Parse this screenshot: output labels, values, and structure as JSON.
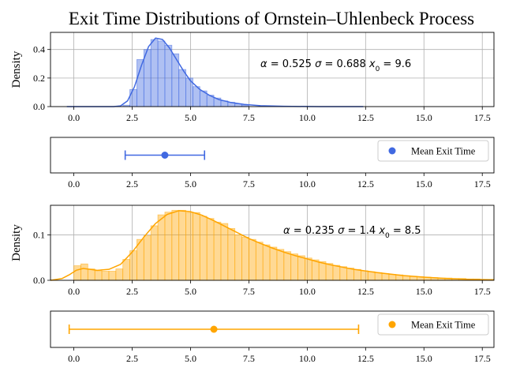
{
  "title": "Exit Time Distributions of Ornstein–Uhlenbeck Process",
  "chart_data": [
    {
      "type": "bar",
      "role": "histogram-with-kde",
      "color": "#4169e1",
      "ylabel": "Density",
      "xlim": [
        -1.0,
        18.0
      ],
      "ylim": [
        0,
        0.52
      ],
      "xticks": [
        "0.0",
        "2.5",
        "5.0",
        "7.5",
        "10.0",
        "12.5",
        "15.0",
        "17.5"
      ],
      "yticks": [
        "0.0",
        "0.2",
        "0.4"
      ],
      "ytick_values": [
        0.0,
        0.2,
        0.4
      ],
      "grid": true,
      "annotation": {
        "alpha": "0.525",
        "sigma": "0.688",
        "x0": "9.6"
      },
      "bin_width": 0.3,
      "bins": [
        {
          "x": 2.1,
          "density": 0.01
        },
        {
          "x": 2.4,
          "density": 0.12
        },
        {
          "x": 2.7,
          "density": 0.33
        },
        {
          "x": 3.0,
          "density": 0.4
        },
        {
          "x": 3.3,
          "density": 0.47
        },
        {
          "x": 3.6,
          "density": 0.46
        },
        {
          "x": 3.9,
          "density": 0.43
        },
        {
          "x": 4.2,
          "density": 0.37
        },
        {
          "x": 4.5,
          "density": 0.26
        },
        {
          "x": 4.8,
          "density": 0.2
        },
        {
          "x": 5.1,
          "density": 0.14
        },
        {
          "x": 5.4,
          "density": 0.11
        },
        {
          "x": 5.7,
          "density": 0.08
        },
        {
          "x": 6.0,
          "density": 0.06
        },
        {
          "x": 6.3,
          "density": 0.04
        },
        {
          "x": 6.6,
          "density": 0.03
        },
        {
          "x": 6.9,
          "density": 0.02
        },
        {
          "x": 7.2,
          "density": 0.01
        }
      ],
      "kde": [
        [
          -0.3,
          0.0
        ],
        [
          1.7,
          0.0
        ],
        [
          2.0,
          0.005
        ],
        [
          2.3,
          0.04
        ],
        [
          2.6,
          0.14
        ],
        [
          2.9,
          0.29
        ],
        [
          3.2,
          0.42
        ],
        [
          3.5,
          0.48
        ],
        [
          3.8,
          0.47
        ],
        [
          4.1,
          0.41
        ],
        [
          4.4,
          0.33
        ],
        [
          4.7,
          0.25
        ],
        [
          5.0,
          0.18
        ],
        [
          5.4,
          0.12
        ],
        [
          5.8,
          0.08
        ],
        [
          6.2,
          0.05
        ],
        [
          6.7,
          0.03
        ],
        [
          7.3,
          0.015
        ],
        [
          8.0,
          0.006
        ],
        [
          9.0,
          0.002
        ],
        [
          10.5,
          0.0
        ],
        [
          12.4,
          0.0
        ]
      ]
    },
    {
      "type": "errorbar",
      "role": "mean-exit-time",
      "color": "#4169e1",
      "xlim": [
        -1.0,
        18.0
      ],
      "xticks": [
        "0.0",
        "2.5",
        "5.0",
        "7.5",
        "10.0",
        "12.5",
        "15.0",
        "17.5"
      ],
      "mean": 3.9,
      "lower": 2.2,
      "upper": 5.6,
      "legend": "Mean Exit Time"
    },
    {
      "type": "bar",
      "role": "histogram-with-kde",
      "color": "#ffa500",
      "ylabel": "Density",
      "xlim": [
        -1.0,
        18.0
      ],
      "ylim": [
        0,
        0.165
      ],
      "xticks": [
        "0.0",
        "2.5",
        "5.0",
        "7.5",
        "10.0",
        "12.5",
        "15.0",
        "17.5"
      ],
      "yticks": [
        "0.0",
        "0.1"
      ],
      "ytick_values": [
        0.0,
        0.1
      ],
      "grid": true,
      "annotation": {
        "alpha": "0.235",
        "sigma": "1.4",
        "x0": "8.5"
      },
      "bin_width": 0.3,
      "bins": [
        {
          "x": 0.0,
          "density": 0.032
        },
        {
          "x": 0.3,
          "density": 0.036
        },
        {
          "x": 0.6,
          "density": 0.025
        },
        {
          "x": 0.9,
          "density": 0.021
        },
        {
          "x": 1.2,
          "density": 0.02
        },
        {
          "x": 1.5,
          "density": 0.02
        },
        {
          "x": 1.8,
          "density": 0.025
        },
        {
          "x": 2.1,
          "density": 0.046
        },
        {
          "x": 2.4,
          "density": 0.065
        },
        {
          "x": 2.7,
          "density": 0.09
        },
        {
          "x": 3.0,
          "density": 0.098
        },
        {
          "x": 3.3,
          "density": 0.12
        },
        {
          "x": 3.6,
          "density": 0.144
        },
        {
          "x": 3.9,
          "density": 0.15
        },
        {
          "x": 4.2,
          "density": 0.154
        },
        {
          "x": 4.5,
          "density": 0.154
        },
        {
          "x": 4.8,
          "density": 0.149
        },
        {
          "x": 5.1,
          "density": 0.149
        },
        {
          "x": 5.4,
          "density": 0.141
        },
        {
          "x": 5.7,
          "density": 0.136
        },
        {
          "x": 6.0,
          "density": 0.128
        },
        {
          "x": 6.3,
          "density": 0.125
        },
        {
          "x": 6.6,
          "density": 0.114
        },
        {
          "x": 6.9,
          "density": 0.1
        },
        {
          "x": 7.2,
          "density": 0.095
        },
        {
          "x": 7.5,
          "density": 0.09
        },
        {
          "x": 7.8,
          "density": 0.084
        },
        {
          "x": 8.1,
          "density": 0.078
        },
        {
          "x": 8.4,
          "density": 0.073
        },
        {
          "x": 8.7,
          "density": 0.068
        },
        {
          "x": 9.0,
          "density": 0.063
        },
        {
          "x": 9.3,
          "density": 0.058
        },
        {
          "x": 9.6,
          "density": 0.054
        },
        {
          "x": 9.9,
          "density": 0.049
        },
        {
          "x": 10.2,
          "density": 0.045
        },
        {
          "x": 10.5,
          "density": 0.041
        },
        {
          "x": 10.8,
          "density": 0.037
        },
        {
          "x": 11.1,
          "density": 0.033
        },
        {
          "x": 11.4,
          "density": 0.03
        },
        {
          "x": 11.7,
          "density": 0.027
        },
        {
          "x": 12.0,
          "density": 0.024
        },
        {
          "x": 12.3,
          "density": 0.021
        },
        {
          "x": 12.6,
          "density": 0.019
        },
        {
          "x": 12.9,
          "density": 0.017
        },
        {
          "x": 13.2,
          "density": 0.015
        },
        {
          "x": 13.5,
          "density": 0.013
        },
        {
          "x": 13.8,
          "density": 0.012
        },
        {
          "x": 14.1,
          "density": 0.01
        },
        {
          "x": 14.4,
          "density": 0.009
        },
        {
          "x": 14.7,
          "density": 0.008
        },
        {
          "x": 15.0,
          "density": 0.007
        },
        {
          "x": 15.3,
          "density": 0.006
        },
        {
          "x": 15.6,
          "density": 0.005
        },
        {
          "x": 15.9,
          "density": 0.005
        },
        {
          "x": 16.2,
          "density": 0.004
        },
        {
          "x": 16.5,
          "density": 0.004
        },
        {
          "x": 16.8,
          "density": 0.003
        },
        {
          "x": 17.1,
          "density": 0.003
        },
        {
          "x": 17.4,
          "density": 0.002
        },
        {
          "x": 17.7,
          "density": 0.002
        }
      ],
      "kde": [
        [
          -1.0,
          0.0
        ],
        [
          -0.5,
          0.004
        ],
        [
          -0.2,
          0.012
        ],
        [
          0.1,
          0.022
        ],
        [
          0.4,
          0.026
        ],
        [
          0.7,
          0.024
        ],
        [
          1.0,
          0.022
        ],
        [
          1.5,
          0.024
        ],
        [
          2.0,
          0.035
        ],
        [
          2.5,
          0.062
        ],
        [
          3.0,
          0.095
        ],
        [
          3.5,
          0.125
        ],
        [
          4.0,
          0.145
        ],
        [
          4.5,
          0.153
        ],
        [
          5.0,
          0.151
        ],
        [
          5.5,
          0.143
        ],
        [
          6.0,
          0.131
        ],
        [
          6.5,
          0.118
        ],
        [
          7.0,
          0.105
        ],
        [
          7.5,
          0.092
        ],
        [
          8.0,
          0.081
        ],
        [
          8.5,
          0.071
        ],
        [
          9.0,
          0.062
        ],
        [
          9.5,
          0.054
        ],
        [
          10.0,
          0.047
        ],
        [
          10.5,
          0.04
        ],
        [
          11.0,
          0.034
        ],
        [
          11.5,
          0.029
        ],
        [
          12.0,
          0.024
        ],
        [
          13.0,
          0.017
        ],
        [
          14.0,
          0.011
        ],
        [
          15.0,
          0.007
        ],
        [
          16.0,
          0.004
        ],
        [
          17.0,
          0.002
        ],
        [
          18.0,
          0.001
        ]
      ]
    },
    {
      "type": "errorbar",
      "role": "mean-exit-time",
      "color": "#ffa500",
      "xlim": [
        -1.0,
        18.0
      ],
      "xticks": [
        "0.0",
        "2.5",
        "5.0",
        "7.5",
        "10.0",
        "12.5",
        "15.0",
        "17.5"
      ],
      "mean": 6.0,
      "lower": -0.2,
      "upper": 12.2,
      "legend": "Mean Exit Time"
    }
  ]
}
